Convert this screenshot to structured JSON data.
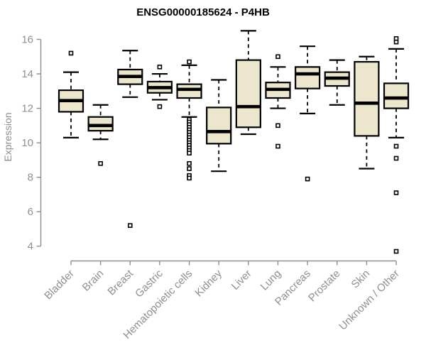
{
  "chart_data": {
    "type": "boxplot",
    "title": "ENSG00000185624 - P4HB",
    "xlabel": "",
    "ylabel": "Expression",
    "ylim": [
      4,
      16
    ],
    "yticks": [
      4,
      6,
      8,
      10,
      12,
      14,
      16
    ],
    "grid": false,
    "legend": "none",
    "categories": [
      "Bladder",
      "Brain",
      "Breast",
      "Gastric",
      "Hematopoietic cells",
      "Kidney",
      "Liver",
      "Lung",
      "Pancreas",
      "Prostate",
      "Skin",
      "Unknown / Other"
    ],
    "boxes": [
      {
        "category": "Bladder",
        "whisker_low": 10.3,
        "q1": 11.8,
        "median": 12.45,
        "q3": 13.05,
        "whisker_high": 14.1,
        "outliers": [
          15.2
        ]
      },
      {
        "category": "Brain",
        "whisker_low": 10.2,
        "q1": 10.7,
        "median": 11.0,
        "q3": 11.5,
        "whisker_high": 12.2,
        "outliers": [
          8.8
        ]
      },
      {
        "category": "Breast",
        "whisker_low": 12.65,
        "q1": 13.4,
        "median": 13.85,
        "q3": 14.25,
        "whisker_high": 15.35,
        "outliers": [
          5.2
        ]
      },
      {
        "category": "Gastric",
        "whisker_low": 12.5,
        "q1": 12.9,
        "median": 13.2,
        "q3": 13.55,
        "whisker_high": 14.0,
        "outliers": [
          14.4,
          12.1
        ]
      },
      {
        "category": "Hematopoietic cells",
        "whisker_low": 11.5,
        "q1": 12.6,
        "median": 13.1,
        "q3": 13.4,
        "whisker_high": 14.5,
        "outliers": [
          14.7,
          11.35,
          11.2,
          11.05,
          10.9,
          10.75,
          10.6,
          10.45,
          10.3,
          10.15,
          10.0,
          9.85,
          9.7,
          9.55,
          9.4,
          8.8,
          8.5,
          8.1,
          7.95
        ]
      },
      {
        "category": "Kidney",
        "whisker_low": 8.35,
        "q1": 9.95,
        "median": 10.65,
        "q3": 12.05,
        "whisker_high": 13.65,
        "outliers": []
      },
      {
        "category": "Liver",
        "whisker_low": 10.5,
        "q1": 10.9,
        "median": 12.1,
        "q3": 14.8,
        "whisker_high": 16.5,
        "outliers": []
      },
      {
        "category": "Lung",
        "whisker_low": 12.0,
        "q1": 12.6,
        "median": 13.1,
        "q3": 13.5,
        "whisker_high": 14.4,
        "outliers": [
          15.0,
          11.0,
          9.8
        ]
      },
      {
        "category": "Pancreas",
        "whisker_low": 11.7,
        "q1": 13.15,
        "median": 14.0,
        "q3": 14.4,
        "whisker_high": 15.6,
        "outliers": [
          7.9
        ]
      },
      {
        "category": "Prostate",
        "whisker_low": 12.2,
        "q1": 13.3,
        "median": 13.75,
        "q3": 14.1,
        "whisker_high": 14.8,
        "outliers": []
      },
      {
        "category": "Skin",
        "whisker_low": 8.5,
        "q1": 10.4,
        "median": 12.3,
        "q3": 14.7,
        "whisker_high": 15.0,
        "outliers": []
      },
      {
        "category": "Unknown / Other",
        "whisker_low": 10.3,
        "q1": 12.0,
        "median": 12.6,
        "q3": 13.45,
        "whisker_high": 15.45,
        "outliers": [
          16.05,
          15.85,
          9.8,
          9.1,
          7.1,
          3.7
        ]
      }
    ],
    "colors": {
      "box_fill": "#ece6cd",
      "box_stroke": "#000000",
      "median": "#000000",
      "whisker": "#000000",
      "outlier_stroke": "#000000",
      "axis": "#8f8f8f",
      "title": "#000000",
      "background": "#ffffff"
    }
  }
}
